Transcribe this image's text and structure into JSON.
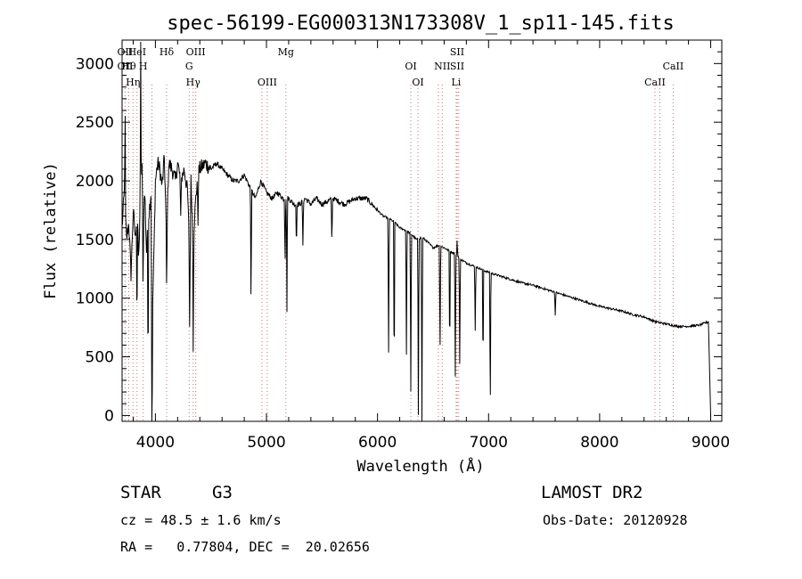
{
  "chart_data": {
    "type": "line",
    "title": "spec-56199-EG000313N173308V_1_sp11-145.fits",
    "xlabel": "Wavelength (Å)",
    "ylabel": "Flux (relative)",
    "xlim": [
      3700,
      9100
    ],
    "ylim": [
      -50,
      3200
    ],
    "xticks": [
      4000,
      5000,
      6000,
      7000,
      8000,
      9000
    ],
    "yticks": [
      0,
      500,
      1000,
      1500,
      2000,
      2500,
      3000
    ],
    "grid": false,
    "series": [
      {
        "x": [
          3700,
          3720,
          3740,
          3760,
          3780,
          3800,
          3820,
          3835,
          3850,
          3865,
          3880,
          3890,
          3905,
          3920,
          3940,
          3960,
          3970,
          3985,
          4000,
          4020,
          4040,
          4060,
          4080,
          4101,
          4120,
          4150,
          4180,
          4200,
          4230,
          4260,
          4290,
          4310,
          4320,
          4340,
          4360,
          4380,
          4400,
          4450,
          4500,
          4550,
          4600,
          4650,
          4700,
          4750,
          4800,
          4850,
          4900,
          4950,
          5000,
          5050,
          5100,
          5150,
          5200,
          5250,
          5300,
          5350,
          5400,
          5450,
          5500,
          5600,
          5700,
          5800,
          5900,
          6000,
          6050,
          6100,
          6150,
          6200,
          6250,
          6300,
          6350,
          6400,
          6450,
          6500,
          6550,
          6600,
          6650,
          6700,
          6750,
          6800,
          6900,
          7000,
          7100,
          7200,
          7300,
          7400,
          7500,
          7600,
          7700,
          7800,
          7900,
          8000,
          8100,
          8200,
          8300,
          8400,
          8500,
          8600,
          8700,
          8800,
          8900,
          8980,
          9000
        ],
        "y": [
          1600,
          1900,
          1500,
          1650,
          1200,
          1750,
          1500,
          1800,
          1300,
          1900,
          2100,
          1700,
          1900,
          1400,
          1700,
          1900,
          750,
          1300,
          2000,
          2150,
          2100,
          1950,
          2200,
          1500,
          2150,
          2100,
          2000,
          2150,
          2000,
          2100,
          1900,
          1300,
          2000,
          1500,
          1800,
          2050,
          2100,
          2150,
          2100,
          2150,
          2100,
          2050,
          2000,
          2000,
          2050,
          1950,
          1850,
          2000,
          1900,
          1850,
          1900,
          1850,
          1850,
          1800,
          1800,
          1850,
          1800,
          1850,
          1800,
          1850,
          1800,
          1850,
          1850,
          1750,
          1700,
          1680,
          1650,
          1600,
          1580,
          1550,
          1500,
          1520,
          1480,
          1430,
          1450,
          1430,
          1400,
          1380,
          1330,
          1300,
          1260,
          1220,
          1190,
          1160,
          1130,
          1110,
          1080,
          1050,
          1020,
          990,
          960,
          930,
          910,
          890,
          860,
          840,
          800,
          780,
          760,
          760,
          770,
          800,
          0
        ]
      }
    ],
    "absorption_lines": [
      {
        "x": 3834,
        "depth": 1100
      },
      {
        "x": 3889,
        "depth": 700
      },
      {
        "x": 3934,
        "depth": 1300
      },
      {
        "x": 3969,
        "depth": 1300
      },
      {
        "x": 4101,
        "depth": 500
      },
      {
        "x": 4227,
        "depth": 400
      },
      {
        "x": 4308,
        "depth": 600
      },
      {
        "x": 4340,
        "depth": 900
      },
      {
        "x": 4383,
        "depth": 500
      },
      {
        "x": 4861,
        "depth": 1050
      },
      {
        "x": 5167,
        "depth": 600
      },
      {
        "x": 5184,
        "depth": 950
      },
      {
        "x": 5270,
        "depth": 400
      },
      {
        "x": 5328,
        "depth": 400
      },
      {
        "x": 5589,
        "depth": 400
      },
      {
        "x": 6100,
        "depth": 1150
      },
      {
        "x": 6150,
        "depth": 1450
      },
      {
        "x": 6260,
        "depth": 1050
      },
      {
        "x": 6300,
        "depth": 1350
      },
      {
        "x": 6368,
        "depth": 1500
      },
      {
        "x": 6400,
        "depth": 1600
      },
      {
        "x": 6563,
        "depth": 1000
      },
      {
        "x": 6650,
        "depth": 950
      },
      {
        "x": 6700,
        "depth": 1050
      },
      {
        "x": 6740,
        "depth": 900
      },
      {
        "x": 6880,
        "depth": 550
      },
      {
        "x": 6950,
        "depth": 900
      },
      {
        "x": 7015,
        "depth": 1250
      },
      {
        "x": 7600,
        "depth": 200
      }
    ],
    "emission_lines": [
      {
        "x": 3727,
        "height": 950
      },
      {
        "x": 3868,
        "height": 1200
      },
      {
        "x": 6717,
        "height": 150
      }
    ],
    "line_markers": [
      {
        "x": 3727,
        "labels": [
          "OII",
          "OII"
        ]
      },
      {
        "x": 3760,
        "labels": [
          "Hθ"
        ]
      },
      {
        "x": 3798,
        "labels": [
          "Hη"
        ]
      },
      {
        "x": 3835,
        "labels": [
          "HeI"
        ]
      },
      {
        "x": 3890,
        "labels": [
          "H"
        ]
      },
      {
        "x": 3969,
        "labels": []
      },
      {
        "x": 4101,
        "labels": [
          "Hδ"
        ]
      },
      {
        "x": 4304,
        "labels": [
          "G"
        ]
      },
      {
        "x": 4340,
        "labels": [
          "Hγ"
        ]
      },
      {
        "x": 4363,
        "labels": [
          "OIII"
        ]
      },
      {
        "x": 4959,
        "labels": []
      },
      {
        "x": 5007,
        "labels": [
          "OIII"
        ]
      },
      {
        "x": 5175,
        "labels": [
          "Mg"
        ]
      },
      {
        "x": 6300,
        "labels": [
          "OI"
        ]
      },
      {
        "x": 6364,
        "labels": [
          "OI"
        ]
      },
      {
        "x": 6548,
        "labels": []
      },
      {
        "x": 6583,
        "labels": [
          "NII"
        ]
      },
      {
        "x": 6708,
        "labels": [
          "Li"
        ]
      },
      {
        "x": 6717,
        "labels": [
          "SII",
          "SII"
        ]
      },
      {
        "x": 6731,
        "labels": []
      },
      {
        "x": 8498,
        "labels": [
          "CaII"
        ]
      },
      {
        "x": 8542,
        "labels": []
      },
      {
        "x": 8662,
        "labels": [
          "CaII"
        ]
      }
    ]
  },
  "info": {
    "object_type": "STAR",
    "subclass": "G3",
    "survey": "LAMOST DR2",
    "cz": "cz = 48.5 ± 1.6 km/s",
    "obs_date": "Obs-Date: 20120928",
    "coords": "RA =   0.77804, DEC =  20.02656"
  }
}
